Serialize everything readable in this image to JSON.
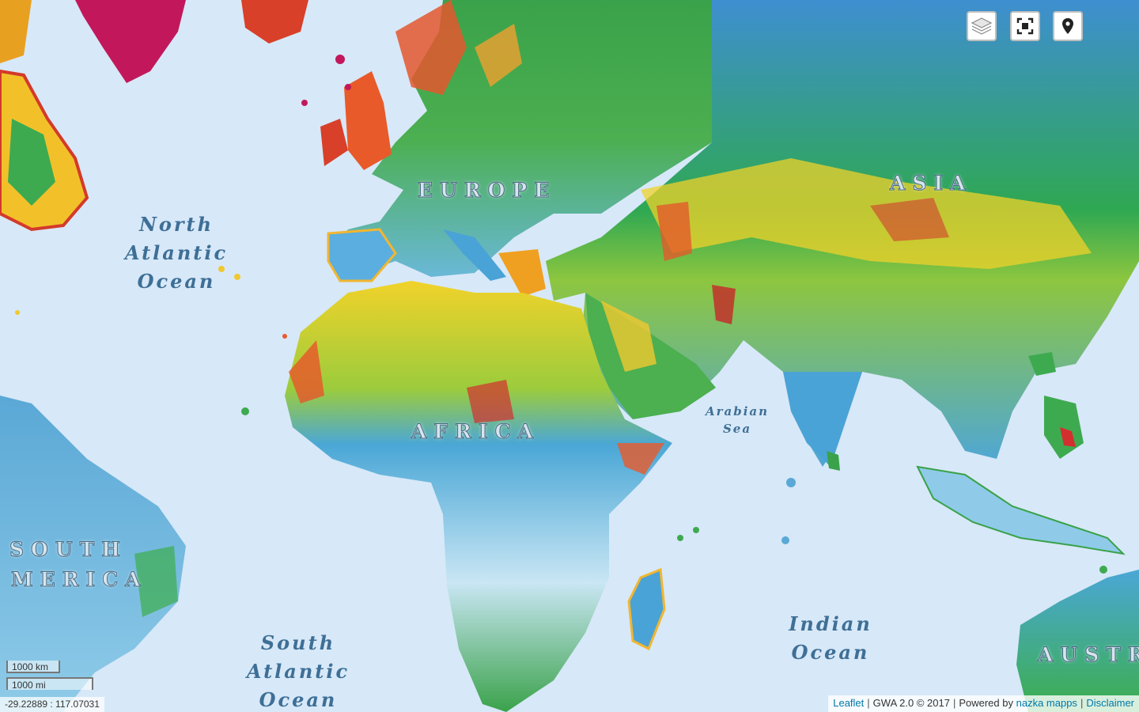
{
  "map": {
    "ocean_labels": {
      "north_atlantic": [
        "North",
        "Atlantic",
        "Ocean"
      ],
      "south_atlantic": [
        "South",
        "Atlantic",
        "Ocean"
      ],
      "indian": [
        "Indian",
        "Ocean"
      ],
      "arabian_sea": [
        "Arabian",
        "Sea"
      ]
    },
    "continent_labels": {
      "europe": "EUROPE",
      "asia": "ASIA",
      "africa": "AFRICA",
      "south_america_1": "SOUTH",
      "south_america_2": "MERICA",
      "australia": "AUSTR"
    },
    "legend_colors": {
      "ocean": "#d7e8f8",
      "low": "#bfe0f2",
      "mid_low": "#5aa8d6",
      "mid": "#3cae4c",
      "mid_high": "#f4d91e",
      "high": "#e84a2a",
      "max": "#b0194a"
    }
  },
  "controls": {
    "layers_icon": "layers-icon",
    "fullscreen_icon": "fullscreen-icon",
    "locate_icon": "map-marker-icon"
  },
  "scale": {
    "metric": "1000 km",
    "imperial": "1000 mi"
  },
  "coordinates": "-29.22889 : 117.07031",
  "attribution": {
    "leaflet": "Leaflet",
    "gwa": "GWA 2.0 © 2017",
    "powered_prefix": "Powered by",
    "nazka": "nazka mapps",
    "disclaimer": "Disclaimer"
  }
}
